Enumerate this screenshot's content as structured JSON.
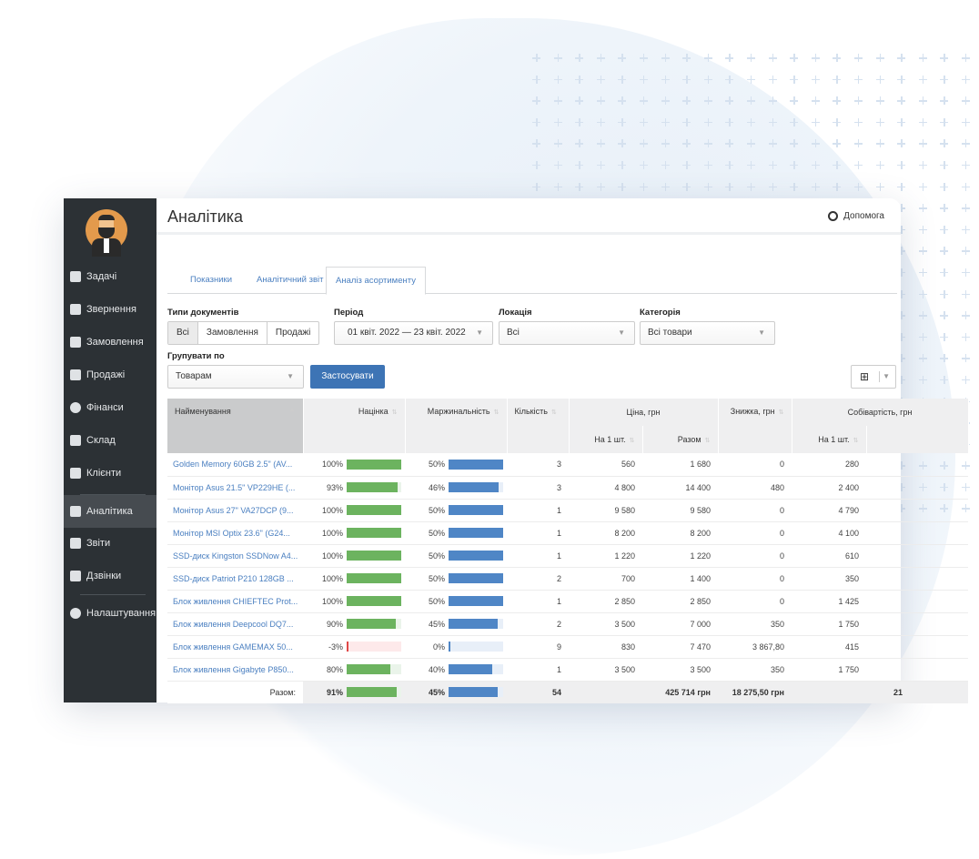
{
  "header": {
    "title": "Аналітика",
    "help": "Допомога"
  },
  "sidebar": {
    "items": [
      {
        "label": "Задачі",
        "icon": "clipboard-icon"
      },
      {
        "label": "Звернення",
        "icon": "filter-icon"
      },
      {
        "label": "Замовлення",
        "icon": "order-icon"
      },
      {
        "label": "Продажі",
        "icon": "cart-icon"
      },
      {
        "label": "Фінанси",
        "icon": "money-icon"
      },
      {
        "label": "Склад",
        "icon": "boxes-icon"
      },
      {
        "label": "Клієнти",
        "icon": "users-icon"
      },
      {
        "label": "Аналітика",
        "icon": "chart-area-icon",
        "active": true
      },
      {
        "label": "Звіти",
        "icon": "reports-icon"
      },
      {
        "label": "Дзвінки",
        "icon": "phone-icon"
      },
      {
        "label": "Налаштування",
        "icon": "gear-icon"
      }
    ]
  },
  "tabs": [
    "Показники",
    "Аналітичний звіт",
    "Аналіз асортименту"
  ],
  "filters": {
    "doc_types_label": "Типи документів",
    "doc_types": [
      "Всі",
      "Замовлення",
      "Продажі"
    ],
    "period_label": "Період",
    "period": "01 квіт. 2022 — 23 квіт. 2022",
    "location_label": "Локація",
    "location": "Всі",
    "category_label": "Категорія",
    "category": "Всі товари",
    "group_label": "Групувати по",
    "group": "Товарам",
    "apply": "Застосувати"
  },
  "table": {
    "headers": {
      "name": "Найменування",
      "markup": "Націнка",
      "margin": "Маржинальність",
      "qty": "Кількість",
      "price": "Ціна, грн",
      "per_unit": "На 1 шт.",
      "total": "Разом",
      "discount": "Знижка, грн",
      "cost": "Собівартість, грн",
      "cost_per_unit": "На 1 шт."
    },
    "rows": [
      {
        "name": "Golden Memory 60GB 2.5\" (AV...",
        "markup": 100,
        "margin": 50,
        "qty": "3",
        "price": "560",
        "total": "1 680",
        "discount": "0",
        "cost": "280"
      },
      {
        "name": "Монітор Asus 21.5\" VP229HE (...",
        "markup": 93,
        "margin": 46,
        "qty": "3",
        "price": "4 800",
        "total": "14 400",
        "discount": "480",
        "cost": "2 400"
      },
      {
        "name": "Монітор Asus 27\" VA27DCP (9...",
        "markup": 100,
        "margin": 50,
        "qty": "1",
        "price": "9 580",
        "total": "9 580",
        "discount": "0",
        "cost": "4 790"
      },
      {
        "name": "Монітор MSI Optix 23.6\" (G24...",
        "markup": 100,
        "margin": 50,
        "qty": "1",
        "price": "8 200",
        "total": "8 200",
        "discount": "0",
        "cost": "4 100"
      },
      {
        "name": "SSD-диск Kingston SSDNow A4...",
        "markup": 100,
        "margin": 50,
        "qty": "1",
        "price": "1 220",
        "total": "1 220",
        "discount": "0",
        "cost": "610"
      },
      {
        "name": "SSD-диск Patriot P210 128GB ...",
        "markup": 100,
        "margin": 50,
        "qty": "2",
        "price": "700",
        "total": "1 400",
        "discount": "0",
        "cost": "350"
      },
      {
        "name": "Блок живлення CHIEFTEC Prot...",
        "markup": 100,
        "margin": 50,
        "qty": "1",
        "price": "2 850",
        "total": "2 850",
        "discount": "0",
        "cost": "1 425"
      },
      {
        "name": "Блок живлення Deepcool DQ7...",
        "markup": 90,
        "margin": 45,
        "qty": "2",
        "price": "3 500",
        "total": "7 000",
        "discount": "350",
        "cost": "1 750"
      },
      {
        "name": "Блок живлення GAMEMAX 50...",
        "markup": -3,
        "margin": 0,
        "qty": "9",
        "price": "830",
        "total": "7 470",
        "discount": "3 867,80",
        "cost": "415"
      },
      {
        "name": "Блок живлення Gigabyte P850...",
        "markup": 80,
        "margin": 40,
        "qty": "1",
        "price": "3 500",
        "total": "3 500",
        "discount": "350",
        "cost": "1 750"
      }
    ],
    "totals": {
      "label": "Разом:",
      "markup": 91,
      "margin": 45,
      "qty": "54",
      "total": "425 714 грн",
      "discount": "18 275,50 грн",
      "cost_partial": "21"
    }
  },
  "colors": {
    "green": "#6cb35f",
    "blue": "#4f86c6",
    "red": "#e04848",
    "accent": "#3d74b5"
  }
}
